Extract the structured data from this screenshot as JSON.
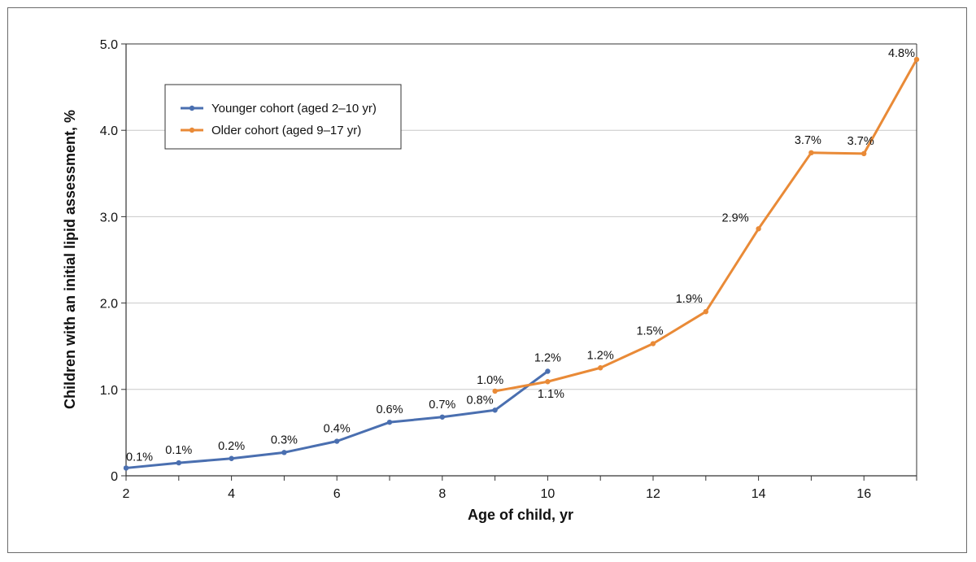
{
  "chart_data": {
    "type": "line",
    "title": "",
    "xlabel": "Age of child, yr",
    "ylabel": "Children with an initial lipid assessment, %",
    "xlim": [
      2,
      17
    ],
    "ylim": [
      0,
      5.0
    ],
    "x_ticks": [
      2,
      4,
      6,
      8,
      10,
      12,
      14,
      16
    ],
    "x_tick_labels": [
      "2",
      "4",
      "6",
      "8",
      "10",
      "12",
      "14",
      "16"
    ],
    "y_ticks": [
      0,
      1.0,
      2.0,
      3.0,
      4.0,
      5.0
    ],
    "y_tick_labels": [
      "0",
      "1.0",
      "2.0",
      "3.0",
      "4.0",
      "5.0"
    ],
    "grid": "horizontal",
    "legend_position": "top-left",
    "series": [
      {
        "name": "Younger cohort (aged 2–10 yr)",
        "color": "#4a6fb0",
        "x": [
          2,
          3,
          4,
          5,
          6,
          7,
          8,
          9,
          10
        ],
        "values": [
          0.09,
          0.15,
          0.2,
          0.27,
          0.4,
          0.62,
          0.68,
          0.76,
          1.21
        ],
        "labels": [
          "0.1%",
          "0.1%",
          "0.2%",
          "0.3%",
          "0.4%",
          "0.6%",
          "0.7%",
          "0.8%",
          "1.2%"
        ]
      },
      {
        "name": "Older cohort (aged 9–17 yr)",
        "color": "#e98a37",
        "x": [
          9,
          10,
          11,
          12,
          13,
          14,
          15,
          16,
          17
        ],
        "values": [
          0.98,
          1.09,
          1.25,
          1.53,
          1.9,
          2.86,
          3.74,
          3.73,
          4.82
        ],
        "labels": [
          "1.0%",
          "1.1%",
          "1.2%",
          "1.5%",
          "1.9%",
          "2.9%",
          "3.7%",
          "3.7%",
          "4.8%"
        ]
      }
    ]
  }
}
